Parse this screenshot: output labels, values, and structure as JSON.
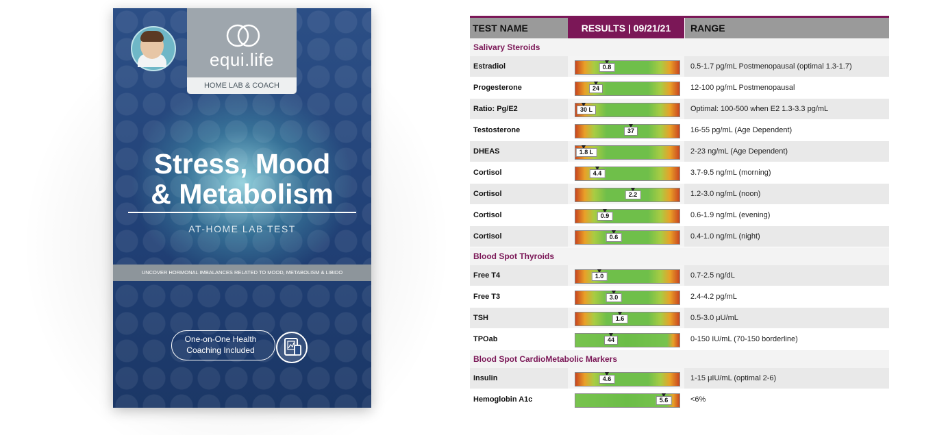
{
  "cover": {
    "badge_text": "",
    "logo": "equi.life",
    "logo_subtitle": "HOME LAB & COACH",
    "title_line1": "Stress, Mood",
    "title_line2": "& Metabolism",
    "subtitle": "AT-HOME LAB TEST",
    "band_text": "UNCOVER HORMONAL IMBALANCES RELATED TO MOOD, METABOLISM & LIBIDO",
    "coaching_line1": "One-on-One Health",
    "coaching_line2": "Coaching Included",
    "coaching_icon": "tablet-report-icon"
  },
  "report": {
    "header": {
      "test_name": "TEST NAME",
      "results": "RESULTS | 09/21/21",
      "range": "RANGE"
    },
    "accent_color": "#7b1757",
    "sections": [
      {
        "name": "Salivary Steroids",
        "rows": [
          {
            "name": "Estradiol",
            "value_label": "0.8",
            "position": 0.3,
            "scale": "gradient",
            "range": "0.5-1.7 pg/mL Postmenopausal (optimal 1.3-1.7)"
          },
          {
            "name": "Progesterone",
            "value_label": "24",
            "position": 0.2,
            "scale": "gradient",
            "range": "12-100 pg/mL Postmenopausal"
          },
          {
            "name": "Ratio: Pg/E2",
            "value_label": "30 L",
            "position": 0.08,
            "scale": "gradient",
            "range": "Optimal: 100-500 when E2 1.3-3.3 pg/mL"
          },
          {
            "name": "Testosterone",
            "value_label": "37",
            "position": 0.53,
            "scale": "gradient",
            "range": "16-55 pg/mL (Age Dependent)"
          },
          {
            "name": "DHEAS",
            "value_label": "1.8 L",
            "position": 0.08,
            "scale": "gradient",
            "range": "2-23 ng/mL (Age Dependent)"
          },
          {
            "name": "Cortisol",
            "value_label": "4.4",
            "position": 0.21,
            "scale": "gradient",
            "range": "3.7-9.5 ng/mL (morning)"
          },
          {
            "name": "Cortisol",
            "value_label": "2.2",
            "position": 0.55,
            "scale": "gradient",
            "range": "1.2-3.0 ng/mL (noon)"
          },
          {
            "name": "Cortisol",
            "value_label": "0.9",
            "position": 0.28,
            "scale": "gradient",
            "range": "0.6-1.9 ng/mL (evening)"
          },
          {
            "name": "Cortisol",
            "value_label": "0.6",
            "position": 0.37,
            "scale": "gradient",
            "range": "0.4-1.0 ng/mL (night)"
          }
        ]
      },
      {
        "name": "Blood Spot Thyroids",
        "rows": [
          {
            "name": "Free T4",
            "value_label": "1.0",
            "position": 0.23,
            "scale": "gradient",
            "range": "0.7-2.5 ng/dL"
          },
          {
            "name": "Free T3",
            "value_label": "3.0",
            "position": 0.37,
            "scale": "gradient",
            "range": "2.4-4.2 pg/mL"
          },
          {
            "name": "TSH",
            "value_label": "1.6",
            "position": 0.43,
            "scale": "gradient",
            "range": "0.5-3.0 μU/mL"
          },
          {
            "name": "TPOab",
            "value_label": "44",
            "position": 0.34,
            "scale": "green",
            "range": "0-150 IU/mL (70-150 borderline)"
          }
        ]
      },
      {
        "name": "Blood Spot CardioMetabolic Markers",
        "rows": [
          {
            "name": "Insulin",
            "value_label": "4.6",
            "position": 0.3,
            "scale": "gradient",
            "range": "1-15 μIU/mL (optimal 2-6)"
          },
          {
            "name": "Hemoglobin A1c",
            "value_label": "5.6",
            "position": 0.85,
            "scale": "green",
            "range": "<6%"
          }
        ]
      }
    ]
  }
}
